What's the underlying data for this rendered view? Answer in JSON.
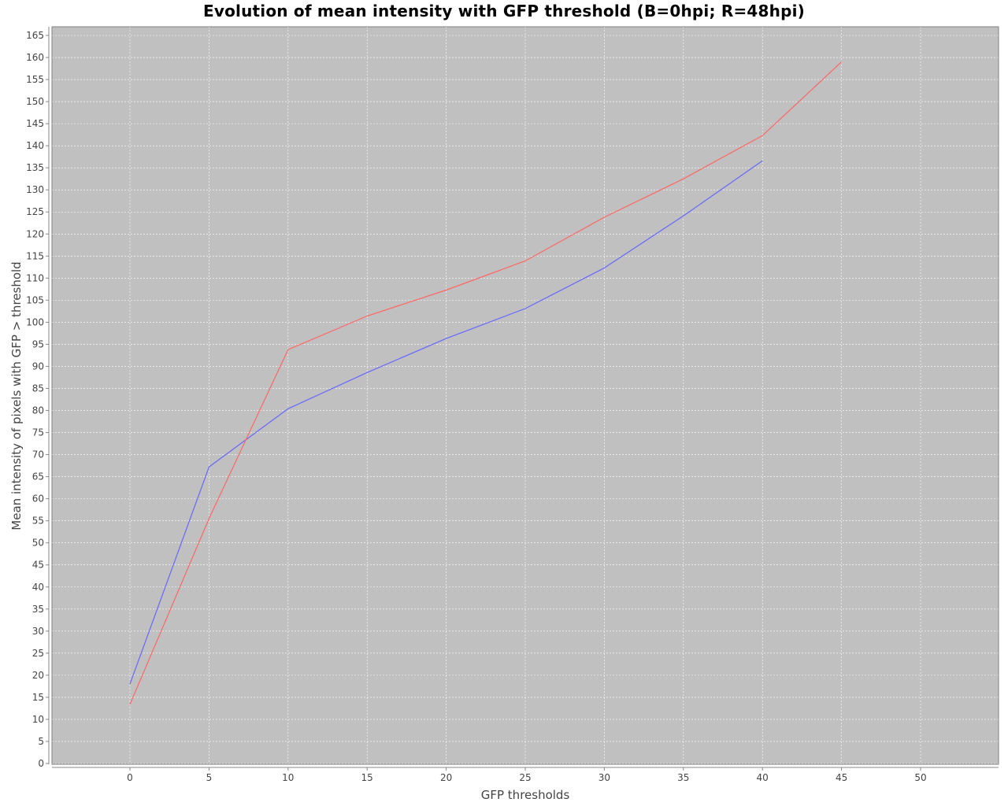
{
  "chart_data": {
    "type": "line",
    "title": "Evolution of mean intensity with GFP threshold (B=0hpi; R=48hpi)",
    "xlabel": "GFP thresholds",
    "ylabel": "Mean intensity of pixels with GFP > threshold",
    "xlim": [
      -5,
      55
    ],
    "ylim": [
      0,
      166
    ],
    "xticks": [
      0,
      5,
      10,
      15,
      20,
      25,
      30,
      35,
      40,
      45,
      50
    ],
    "yticks": [
      0,
      5,
      10,
      15,
      20,
      25,
      30,
      35,
      40,
      45,
      50,
      55,
      60,
      65,
      70,
      75,
      80,
      85,
      90,
      95,
      100,
      105,
      110,
      115,
      120,
      125,
      130,
      135,
      140,
      145,
      150,
      155,
      160,
      165
    ],
    "grid": true,
    "legend": "none",
    "plot_background": "#c0c0c0",
    "gridline_color": "#ffffff",
    "series": [
      {
        "color": "#6666ff",
        "x": [
          0,
          5,
          10,
          15,
          20,
          25,
          30,
          35,
          40
        ],
        "y": [
          18,
          67.2,
          80.4,
          88.6,
          96.3,
          103.1,
          112.3,
          124.1,
          136.6
        ]
      },
      {
        "color": "#ff6666",
        "x": [
          0,
          5,
          10,
          15,
          20,
          25,
          30,
          35,
          40,
          45
        ],
        "y": [
          13.4,
          55.5,
          93.8,
          101.4,
          107.3,
          113.9,
          123.8,
          132.5,
          142.3,
          159
        ]
      }
    ]
  }
}
